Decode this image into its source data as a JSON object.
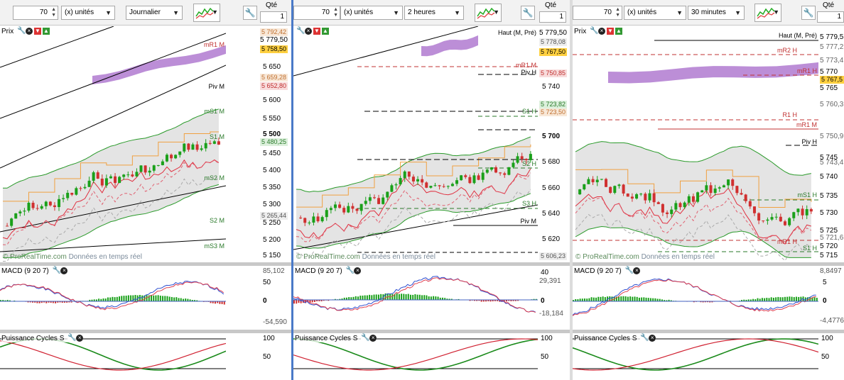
{
  "panels": [
    {
      "id": "p1",
      "quantity": "70",
      "unit": "(x) unités",
      "timeframe": "Journalier",
      "qte_label": "Qté",
      "qte_value": "1",
      "price_title": "Prix",
      "watermark_brand": "© ProRealTime.com",
      "watermark_text": " Données en temps réel",
      "price_ticks": [
        "5 650",
        "5 600",
        "5 550",
        "5 450",
        "5 400",
        "5 350",
        "5 300",
        "5 250",
        "5 200",
        "5 150"
      ],
      "price_bold_tick": "5 500",
      "price_tags": [
        {
          "text": "5 792,42",
          "color": "#c07030",
          "bg": "#f8e8d8"
        },
        {
          "text": "5 758,50",
          "color": "#000",
          "bg": "#ffd040"
        },
        {
          "text": "5 659,28",
          "color": "#c07030",
          "bg": "#f8e8d8"
        },
        {
          "text": "5 652,80",
          "color": "#c03030",
          "bg": "#f8dcdc"
        },
        {
          "text": "5 480,25",
          "color": "#2a7a2a",
          "bg": "#dcf0dc"
        },
        {
          "text": "5 265,44",
          "color": "#555",
          "bg": "#eee"
        }
      ],
      "top_tick": "5 779,50",
      "levels": [
        {
          "label": "mR1 M",
          "color": "#c03030"
        },
        {
          "label": "Piv M",
          "color": "#000"
        },
        {
          "label": "mS1 M",
          "color": "#2a7a2a"
        },
        {
          "label": "S1 M",
          "color": "#2a7a2a"
        },
        {
          "label": "mS2 M",
          "color": "#2a7a2a"
        },
        {
          "label": "S2 M",
          "color": "#2a7a2a"
        },
        {
          "label": "mS3 M",
          "color": "#2a7a2a"
        }
      ],
      "macd_title": "MACD (9 20 7)",
      "macd_ticks": [
        "85,102",
        "50",
        "0",
        "-54,590"
      ],
      "cycles_title": "Puissance Cycles S",
      "cycles_ticks": [
        "100",
        "50"
      ]
    },
    {
      "id": "p2",
      "quantity": "70",
      "unit": "(x) unités",
      "timeframe": "2 heures",
      "qte_label": "Qté",
      "qte_value": "1",
      "watermark_brand": "© ProRealTime.com",
      "watermark_text": " Données en temps réel",
      "price_ticks": [
        "5 779,50",
        "5 740",
        "5 700",
        "5 680",
        "5 660",
        "5 640",
        "5 620"
      ],
      "price_tags": [
        {
          "text": "5 778,08",
          "color": "#555",
          "bg": "#eee"
        },
        {
          "text": "5 767,50",
          "color": "#000",
          "bg": "#ffd040"
        },
        {
          "text": "5 750,85",
          "color": "#c03030",
          "bg": "#f8dcdc"
        },
        {
          "text": "5 723,82",
          "color": "#2a7a2a",
          "bg": "#dcf0dc"
        },
        {
          "text": "5 723,50",
          "color": "#c07030",
          "bg": "#f8e8d8"
        },
        {
          "text": "5 606,23",
          "color": "#555",
          "bg": "#eee"
        }
      ],
      "levels": [
        {
          "label": "Haut (M, Pré)",
          "color": "#000"
        },
        {
          "label": "mR1 M",
          "color": "#c03030"
        },
        {
          "label": "Piv H",
          "color": "#000"
        },
        {
          "label": "S1 H",
          "color": "#2a7a2a"
        },
        {
          "label": "S2 H",
          "color": "#2a7a2a"
        },
        {
          "label": "S3 H",
          "color": "#2a7a2a"
        },
        {
          "label": "Piv M",
          "color": "#000"
        }
      ],
      "macd_title": "MACD (9 20 7)",
      "macd_ticks": [
        "40",
        "29,391",
        "0",
        "-18,184"
      ],
      "cycles_title": "Puissance Cycles S",
      "cycles_ticks": [
        "100",
        "50"
      ]
    },
    {
      "id": "p3",
      "quantity": "70",
      "unit": "(x) unités",
      "timeframe": "30 minutes",
      "qte_label": "Qté",
      "qte_value": "1",
      "price_title": "Prix",
      "watermark_brand": "© ProRealTime.com",
      "watermark_text": " Données en temps réel",
      "price_ticks": [
        "5 779,5",
        "5 777,2",
        "5 773,4",
        "5 770",
        "5 765",
        "5 760,3",
        "5 750,9",
        "5 745",
        "5 743,4",
        "5 740",
        "5 735",
        "5 730",
        "5 725",
        "5 721,6",
        "5 720",
        "5 715"
      ],
      "price_tags_idx": [
        1,
        2,
        5,
        6,
        8,
        13
      ],
      "price_tags": [
        {
          "text": "5 767,5",
          "color": "#000",
          "bg": "#ffd040"
        }
      ],
      "levels": [
        {
          "label": "Haut (M, Pré)",
          "color": "#000"
        },
        {
          "label": "mR2 H",
          "color": "#c03030"
        },
        {
          "label": "mR1 H",
          "color": "#c03030"
        },
        {
          "label": "R1 H",
          "color": "#c03030"
        },
        {
          "label": "mR1 M",
          "color": "#c03030"
        },
        {
          "label": "Piv H",
          "color": "#000"
        },
        {
          "label": "mS1 H",
          "color": "#2a7a2a"
        },
        {
          "label": "mR1 H",
          "color": "#c03030"
        },
        {
          "label": "S1 H",
          "color": "#2a7a2a"
        }
      ],
      "macd_title": "MACD (9 20 7)",
      "macd_ticks": [
        "8,8497",
        "5",
        "0",
        "-4,4776"
      ],
      "cycles_title": "Puissance Cycles S",
      "cycles_ticks": [
        "100",
        "50"
      ]
    }
  ]
}
